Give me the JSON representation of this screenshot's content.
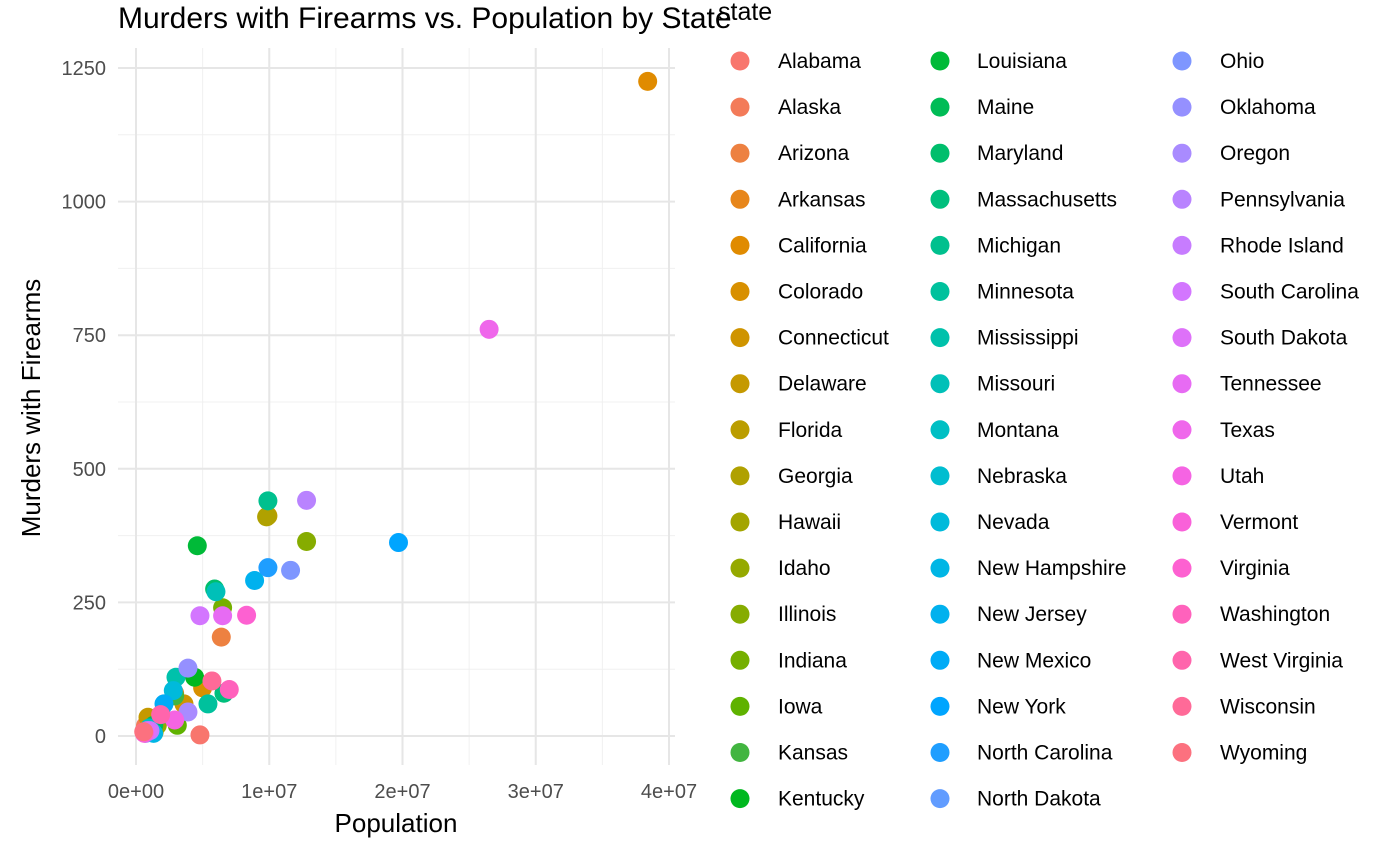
{
  "chart_data": {
    "type": "scatter",
    "title": "Murders with Firearms vs. Population by State",
    "xlabel": "Population",
    "ylabel": "Murders with Firearms",
    "xlim": [
      0,
      40000000
    ],
    "ylim": [
      0,
      1250
    ],
    "x_ticks": [
      0,
      10000000,
      20000000,
      30000000,
      40000000
    ],
    "x_tick_labels": [
      "0e+00",
      "1e+07",
      "2e+07",
      "3e+07",
      "4e+07"
    ],
    "y_ticks": [
      0,
      250,
      500,
      750,
      1000,
      1250
    ],
    "y_tick_labels": [
      "0",
      "250",
      "500",
      "750",
      "1000",
      "1250"
    ],
    "grid": true,
    "legend": {
      "title": "state",
      "placement": "right",
      "columns": 3
    },
    "points": [
      {
        "state": "Alabama",
        "x": 4800000,
        "y": 2,
        "color": "#F8766D"
      },
      {
        "state": "Alaska",
        "x": 710000,
        "y": 19,
        "color": "#F37B59"
      },
      {
        "state": "Arizona",
        "x": 6400000,
        "y": 185,
        "color": "#ED8141"
      },
      {
        "state": "Arkansas",
        "x": 2900000,
        "y": 80,
        "color": "#E7861B"
      },
      {
        "state": "California",
        "x": 38400000,
        "y": 1225,
        "color": "#E08B00"
      },
      {
        "state": "Colorado",
        "x": 5000000,
        "y": 90,
        "color": "#D89000"
      },
      {
        "state": "Connecticut",
        "x": 3600000,
        "y": 60,
        "color": "#CF9400"
      },
      {
        "state": "Delaware",
        "x": 900000,
        "y": 35,
        "color": "#C59900"
      },
      {
        "state": "Florida",
        "x": 9900000,
        "y": 412,
        "color": "#BB9D00"
      },
      {
        "state": "Georgia",
        "x": 9800000,
        "y": 410,
        "color": "#B0A100"
      },
      {
        "state": "Hawaii",
        "x": 1360000,
        "y": 7,
        "color": "#A3A500"
      },
      {
        "state": "Idaho",
        "x": 1600000,
        "y": 20,
        "color": "#95A900"
      },
      {
        "state": "Illinois",
        "x": 12800000,
        "y": 364,
        "color": "#86AC00"
      },
      {
        "state": "Indiana",
        "x": 6500000,
        "y": 240,
        "color": "#75AF00"
      },
      {
        "state": "Iowa",
        "x": 3100000,
        "y": 20,
        "color": "#5FB200"
      },
      {
        "state": "Kansas",
        "x": 2900000,
        "y": 75,
        "color": "#42B540"
      },
      {
        "state": "Kentucky",
        "x": 4400000,
        "y": 110,
        "color": "#00B81F"
      },
      {
        "state": "Louisiana",
        "x": 4600000,
        "y": 356,
        "color": "#00BA38"
      },
      {
        "state": "Maine",
        "x": 1330000,
        "y": 20,
        "color": "#00BC56"
      },
      {
        "state": "Maryland",
        "x": 5900000,
        "y": 275,
        "color": "#00BE6C"
      },
      {
        "state": "Massachusetts",
        "x": 6600000,
        "y": 80,
        "color": "#00BF7D"
      },
      {
        "state": "Michigan",
        "x": 9900000,
        "y": 440,
        "color": "#00C08E"
      },
      {
        "state": "Minnesota",
        "x": 5400000,
        "y": 60,
        "color": "#00C19D"
      },
      {
        "state": "Mississippi",
        "x": 3000000,
        "y": 110,
        "color": "#00C1AB"
      },
      {
        "state": "Missouri",
        "x": 6000000,
        "y": 270,
        "color": "#00C0B8"
      },
      {
        "state": "Montana",
        "x": 1000000,
        "y": 15,
        "color": "#00BFC4"
      },
      {
        "state": "Nebraska",
        "x": 1900000,
        "y": 40,
        "color": "#00BDD0"
      },
      {
        "state": "Nevada",
        "x": 2800000,
        "y": 85,
        "color": "#00BADB"
      },
      {
        "state": "New Hampshire",
        "x": 1320000,
        "y": 5,
        "color": "#00B6E5"
      },
      {
        "state": "New Jersey",
        "x": 8900000,
        "y": 291,
        "color": "#00B1EE"
      },
      {
        "state": "New Mexico",
        "x": 2100000,
        "y": 60,
        "color": "#00ABF6"
      },
      {
        "state": "New York",
        "x": 19700000,
        "y": 362,
        "color": "#00A5FF"
      },
      {
        "state": "North Carolina",
        "x": 9900000,
        "y": 315,
        "color": "#1F9EFF"
      },
      {
        "state": "North Dakota",
        "x": 720000,
        "y": 5,
        "color": "#619CFF"
      },
      {
        "state": "Ohio",
        "x": 11600000,
        "y": 310,
        "color": "#7E96FF"
      },
      {
        "state": "Oklahoma",
        "x": 3900000,
        "y": 127,
        "color": "#9590FF"
      },
      {
        "state": "Oregon",
        "x": 3900000,
        "y": 45,
        "color": "#A98BFF"
      },
      {
        "state": "Pennsylvania",
        "x": 12800000,
        "y": 441,
        "color": "#B983FF"
      },
      {
        "state": "Rhode Island",
        "x": 1050000,
        "y": 10,
        "color": "#C77CFF"
      },
      {
        "state": "South Carolina",
        "x": 4800000,
        "y": 225,
        "color": "#D376FF"
      },
      {
        "state": "South Dakota",
        "x": 850000,
        "y": 10,
        "color": "#DE71F9"
      },
      {
        "state": "Tennessee",
        "x": 6500000,
        "y": 225,
        "color": "#E76BF3"
      },
      {
        "state": "Texas",
        "x": 26500000,
        "y": 761,
        "color": "#EF67EB"
      },
      {
        "state": "Utah",
        "x": 2900000,
        "y": 30,
        "color": "#F564E3"
      },
      {
        "state": "Vermont",
        "x": 630000,
        "y": 5,
        "color": "#F961D9"
      },
      {
        "state": "Virginia",
        "x": 8300000,
        "y": 226,
        "color": "#FD61D1"
      },
      {
        "state": "Washington",
        "x": 7000000,
        "y": 87,
        "color": "#FF62BC"
      },
      {
        "state": "West Virginia",
        "x": 1850000,
        "y": 40,
        "color": "#FF65AC"
      },
      {
        "state": "Wisconsin",
        "x": 5700000,
        "y": 103,
        "color": "#FF6A98"
      },
      {
        "state": "Wyoming",
        "x": 580000,
        "y": 8,
        "color": "#FC717F"
      }
    ]
  }
}
